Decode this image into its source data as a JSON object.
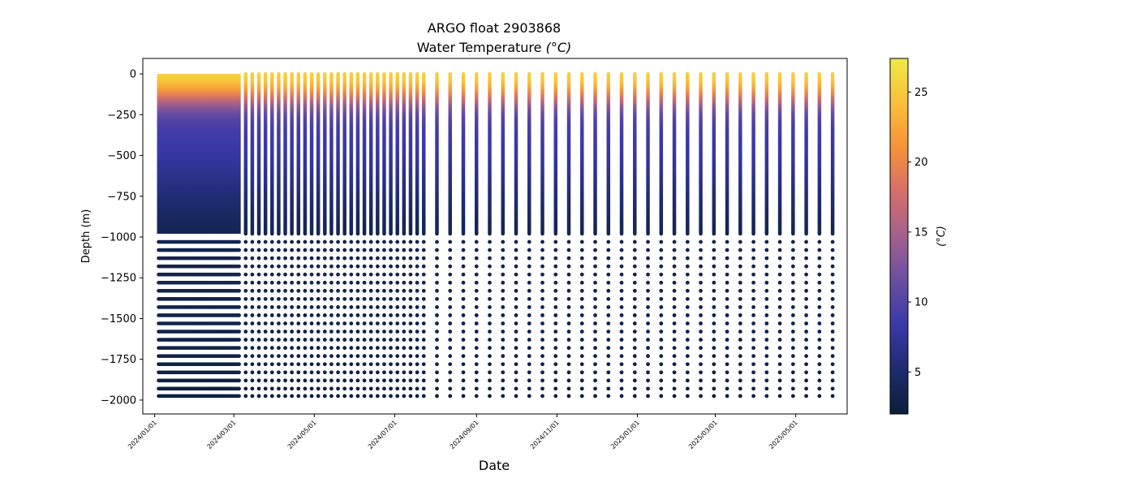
{
  "chart_data": {
    "type": "scatter",
    "title": "ARGO float 2903868",
    "subtitle": "Water Temperature",
    "subtitle_unit": "(°C)",
    "xlabel": "Date",
    "ylabel": "Depth (m)",
    "x_range": [
      "2023-12-23",
      "2025-06-09"
    ],
    "xticks": [
      "2024/01/01",
      "2024/03/01",
      "2024/05/01",
      "2024/07/01",
      "2024/09/01",
      "2024/11/01",
      "2025/01/01",
      "2025/03/01",
      "2025/05/01"
    ],
    "ylim": [
      -2085,
      95
    ],
    "yticks": [
      0,
      -250,
      -500,
      -750,
      -1000,
      -1250,
      -1500,
      -1750,
      -2000
    ],
    "grid": false,
    "colorbar": {
      "label": "(°C)",
      "range": [
        2.0,
        27.4
      ],
      "ticks": [
        5,
        10,
        15,
        20,
        25
      ],
      "colors": [
        "#0b1f3a",
        "#1e2b6e",
        "#3a38a8",
        "#6a4ea2",
        "#a3608e",
        "#d66f6a",
        "#f7913a",
        "#f9c03a",
        "#f0e84a"
      ]
    },
    "profiles": {
      "dense_phase": {
        "start": "2024-01-04",
        "end": "2024-03-05",
        "interval_days": 1
      },
      "profile_dates": [
        "2024-03-10",
        "2024-03-15",
        "2024-03-20",
        "2024-03-25",
        "2024-03-30",
        "2024-04-04",
        "2024-04-09",
        "2024-04-14",
        "2024-04-19",
        "2024-04-24",
        "2024-04-29",
        "2024-05-04",
        "2024-05-09",
        "2024-05-14",
        "2024-05-19",
        "2024-05-24",
        "2024-05-29",
        "2024-06-03",
        "2024-06-08",
        "2024-06-13",
        "2024-06-18",
        "2024-06-23",
        "2024-06-28",
        "2024-07-03",
        "2024-07-08",
        "2024-07-13",
        "2024-07-18",
        "2024-07-23",
        "2024-08-02",
        "2024-08-12",
        "2024-08-22",
        "2024-09-01",
        "2024-09-11",
        "2024-09-21",
        "2024-10-01",
        "2024-10-11",
        "2024-10-21",
        "2024-10-31",
        "2024-11-10",
        "2024-11-20",
        "2024-11-30",
        "2024-12-10",
        "2024-12-20",
        "2024-12-30",
        "2025-01-09",
        "2025-01-19",
        "2025-01-29",
        "2025-02-08",
        "2025-02-18",
        "2025-02-28",
        "2025-03-10",
        "2025-03-20",
        "2025-03-30",
        "2025-04-09",
        "2025-04-19",
        "2025-04-29",
        "2025-05-09",
        "2025-05-19",
        "2025-05-29"
      ],
      "continuous_depth_range": [
        0,
        -980
      ],
      "deep_sample_depths": [
        -1030,
        -1080,
        -1130,
        -1180,
        -1230,
        -1280,
        -1330,
        -1380,
        -1430,
        -1480,
        -1530,
        -1580,
        -1630,
        -1680,
        -1730,
        -1780,
        -1830,
        -1880,
        -1930,
        -1975
      ],
      "temperature_by_depth": [
        [
          0,
          25.5
        ],
        [
          -50,
          24.5
        ],
        [
          -100,
          21.5
        ],
        [
          -150,
          17.5
        ],
        [
          -200,
          13.5
        ],
        [
          -250,
          11
        ],
        [
          -300,
          9.5
        ],
        [
          -400,
          8.5
        ],
        [
          -500,
          8
        ],
        [
          -600,
          7
        ],
        [
          -700,
          6
        ],
        [
          -800,
          5
        ],
        [
          -900,
          4
        ],
        [
          -980,
          3.5
        ],
        [
          -1500,
          3
        ],
        [
          -2000,
          2.5
        ]
      ]
    }
  }
}
